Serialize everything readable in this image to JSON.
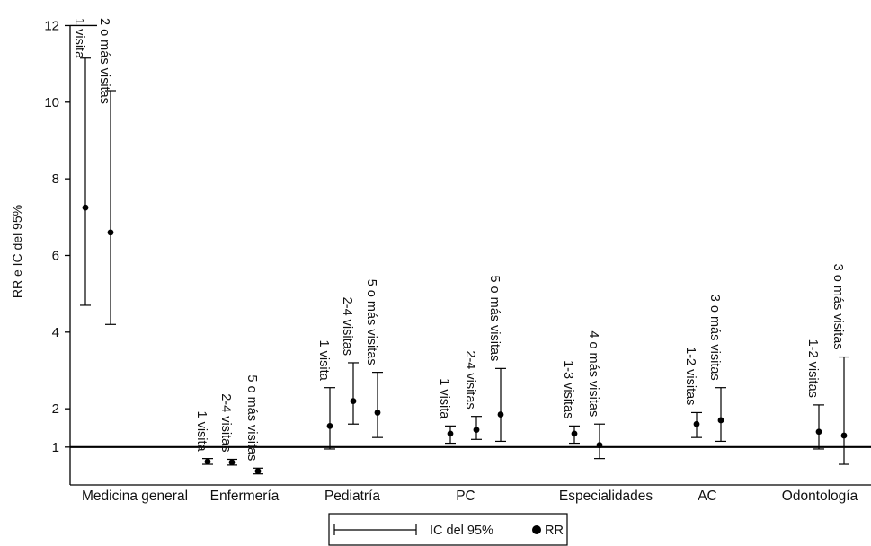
{
  "chart_data": {
    "type": "scatter",
    "ylabel": "RR e IC del 95%",
    "yticks": [
      1,
      2,
      4,
      6,
      8,
      10,
      12
    ],
    "ylim": [
      0,
      12
    ],
    "reference_line": 1,
    "groups": [
      {
        "name": "Medicina general",
        "points": [
          {
            "label": "1 visita",
            "rr": 7.25,
            "low": 4.7,
            "high": 11.15
          },
          {
            "label": "2 o más visitas",
            "rr": 6.6,
            "low": 4.2,
            "high": 10.3
          }
        ]
      },
      {
        "name": "Enfermería",
        "points": [
          {
            "label": "1 visita",
            "rr": 0.62,
            "low": 0.55,
            "high": 0.7
          },
          {
            "label": "2-4 visitas",
            "rr": 0.6,
            "low": 0.53,
            "high": 0.68
          },
          {
            "label": "5 o más visitas",
            "rr": 0.37,
            "low": 0.3,
            "high": 0.45
          }
        ]
      },
      {
        "name": "Pediatría",
        "points": [
          {
            "label": "1 visita",
            "rr": 1.55,
            "low": 0.95,
            "high": 2.55
          },
          {
            "label": "2-4 visitas",
            "rr": 2.2,
            "low": 1.6,
            "high": 3.2
          },
          {
            "label": "5 o más visitas",
            "rr": 1.9,
            "low": 1.25,
            "high": 2.95
          }
        ]
      },
      {
        "name": "PC",
        "points": [
          {
            "label": "1 visita",
            "rr": 1.35,
            "low": 1.1,
            "high": 1.55
          },
          {
            "label": "2-4 visitas",
            "rr": 1.45,
            "low": 1.2,
            "high": 1.8
          },
          {
            "label": "5 o más visitas",
            "rr": 1.85,
            "low": 1.15,
            "high": 3.05
          }
        ]
      },
      {
        "name": "Especialidades",
        "points": [
          {
            "label": "1-3 visitas",
            "rr": 1.35,
            "low": 1.1,
            "high": 1.55
          },
          {
            "label": "4 o más visitas",
            "rr": 1.05,
            "low": 0.7,
            "high": 1.6
          }
        ]
      },
      {
        "name": "AC",
        "points": [
          {
            "label": "1-2 visitas",
            "rr": 1.6,
            "low": 1.25,
            "high": 1.9
          },
          {
            "label": "3 o más visitas",
            "rr": 1.7,
            "low": 1.15,
            "high": 2.55
          }
        ]
      },
      {
        "name": "Odontología",
        "points": [
          {
            "label": "1-2 visitas",
            "rr": 1.4,
            "low": 0.95,
            "high": 2.1
          },
          {
            "label": "3 o más visitas",
            "rr": 1.3,
            "low": 0.55,
            "high": 3.35
          }
        ]
      }
    ],
    "legend": {
      "ci_label": "IC del 95%",
      "rr_label": "RR",
      "position": "bottom-center"
    }
  }
}
